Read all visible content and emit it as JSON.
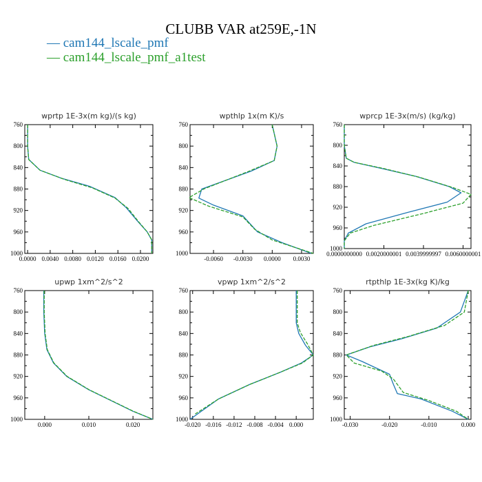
{
  "title": "CLUBB VAR at259E,-1N",
  "legend": [
    {
      "label": "cam144_lscale_pmf",
      "color": "#1f77b4",
      "dash": "solid"
    },
    {
      "label": "cam144_lscale_pmf_a1test",
      "color": "#2ca02c",
      "dash": "dashed"
    }
  ],
  "chart_data": [
    {
      "type": "line",
      "title": "wprtp  1E-3x(m kg)/(s kg)",
      "xlim": [
        -0.0005,
        0.0222
      ],
      "ylim": [
        760,
        1000
      ],
      "y_inverted": true,
      "xticks": [
        0.0,
        0.004,
        0.008,
        0.012,
        0.016,
        0.02
      ],
      "xtick_labels": [
        "0.0000",
        "0.0040",
        "0.0080",
        "0.0120",
        "0.0160",
        "0.0200"
      ],
      "yticks": [
        760,
        800,
        840,
        880,
        920,
        960,
        1000
      ],
      "series": [
        {
          "name": "cam144_lscale_pmf",
          "x": [
            0.0,
            0.0,
            0.0002,
            0.0022,
            0.006,
            0.011,
            0.0155,
            0.0175,
            0.0195,
            0.0212,
            0.022,
            0.022
          ],
          "y": [
            760,
            800,
            825,
            845,
            860,
            875,
            896,
            915,
            940,
            960,
            975,
            1000
          ]
        },
        {
          "name": "cam144_lscale_pmf_a1test",
          "x": [
            0.0,
            0.0,
            0.0002,
            0.0022,
            0.0065,
            0.0115,
            0.0155,
            0.0178,
            0.0196,
            0.0212,
            0.022,
            0.022
          ],
          "y": [
            760,
            800,
            825,
            845,
            862,
            878,
            897,
            916,
            940,
            960,
            975,
            1000
          ]
        }
      ]
    },
    {
      "type": "line",
      "title": "wpthlp  1x(m K)/s",
      "xlim": [
        -0.0084,
        0.0042
      ],
      "ylim": [
        760,
        1000
      ],
      "y_inverted": true,
      "xticks": [
        -0.006,
        -0.003,
        0.0,
        0.003
      ],
      "xtick_labels": [
        "-0.0060",
        "-0.0030",
        "0.0000",
        "0.0030"
      ],
      "yticks": [
        760,
        800,
        840,
        880,
        920,
        960,
        1000
      ],
      "series": [
        {
          "name": "cam144_lscale_pmf",
          "x": [
            0.0,
            0.0005,
            0.0002,
            -0.0022,
            -0.0072,
            -0.0075,
            -0.006,
            -0.003,
            -0.0015,
            0.001,
            0.004
          ],
          "y": [
            760,
            800,
            827,
            847,
            880,
            897,
            910,
            930,
            960,
            980,
            1000
          ]
        },
        {
          "name": "cam144_lscale_pmf_a1test",
          "x": [
            0.0,
            0.0005,
            0.0002,
            -0.0024,
            -0.007,
            -0.0085,
            -0.0065,
            -0.003,
            -0.0018,
            0.0,
            0.0042
          ],
          "y": [
            760,
            800,
            827,
            847,
            880,
            896,
            912,
            932,
            955,
            975,
            1000
          ]
        }
      ]
    },
    {
      "type": "line",
      "title": "wprcp  1E-3x(m/s) (kg/kg)",
      "xlim": [
        0.0,
        0.0064
      ],
      "ylim": [
        760,
        1000
      ],
      "y_inverted": true,
      "xticks": [
        0.0,
        0.002,
        0.004,
        0.006
      ],
      "xtick_labels": [
        "0.0000000000",
        "0.0020000001",
        "0.0039999997",
        "0.0060000001"
      ],
      "yticks": [
        760,
        800,
        840,
        880,
        920,
        960,
        1000
      ],
      "series": [
        {
          "name": "cam144_lscale_pmf",
          "x": [
            0.0,
            0.0,
            0.0001,
            0.0005,
            0.0019,
            0.0036,
            0.0053,
            0.0059,
            0.0052,
            0.0032,
            0.0011,
            0.0002,
            0.0,
            0.0
          ],
          "y": [
            760,
            800,
            825,
            833,
            845,
            860,
            880,
            892,
            910,
            930,
            952,
            970,
            985,
            1000
          ]
        },
        {
          "name": "cam144_lscale_pmf_a1test",
          "x": [
            0.0,
            0.0,
            0.0001,
            0.0005,
            0.002,
            0.0038,
            0.0055,
            0.0064,
            0.006,
            0.004,
            0.0015,
            0.0003,
            0.0,
            0.0
          ],
          "y": [
            760,
            800,
            825,
            833,
            845,
            862,
            882,
            895,
            912,
            932,
            955,
            970,
            985,
            1000
          ]
        }
      ]
    },
    {
      "type": "line",
      "title": "upwp  1xm^2/s^2",
      "xlim": [
        -0.0045,
        0.0245
      ],
      "ylim": [
        760,
        1000
      ],
      "y_inverted": true,
      "xticks": [
        0.0,
        0.01,
        0.02
      ],
      "xtick_labels": [
        "0.000",
        "0.010",
        "0.020"
      ],
      "yticks": [
        760,
        800,
        840,
        880,
        920,
        960,
        1000
      ],
      "series": [
        {
          "name": "cam144_lscale_pmf",
          "x": [
            -0.0002,
            -0.0002,
            0.0,
            0.0005,
            0.002,
            0.005,
            0.01,
            0.015,
            0.02,
            0.0245
          ],
          "y": [
            760,
            800,
            840,
            870,
            895,
            920,
            945,
            965,
            985,
            1000
          ]
        },
        {
          "name": "cam144_lscale_pmf_a1test",
          "x": [
            -0.0001,
            -0.0001,
            0.0001,
            0.0006,
            0.0021,
            0.0051,
            0.0101,
            0.0151,
            0.0201,
            0.0245
          ],
          "y": [
            760,
            800,
            840,
            870,
            895,
            920,
            945,
            965,
            985,
            1000
          ]
        }
      ]
    },
    {
      "type": "line",
      "title": "vpwp  1xm^2/s^2",
      "xlim": [
        -0.0205,
        0.0033
      ],
      "ylim": [
        760,
        1000
      ],
      "y_inverted": true,
      "xticks": [
        -0.02,
        -0.016,
        -0.012,
        -0.008,
        -0.004,
        0.0
      ],
      "xtick_labels": [
        "-0.020",
        "-0.016",
        "-0.012",
        "-0.008",
        "-0.004",
        "0.000"
      ],
      "yticks": [
        760,
        800,
        840,
        880,
        920,
        960,
        1000
      ],
      "series": [
        {
          "name": "cam144_lscale_pmf",
          "x": [
            0.0,
            0.0,
            0.0005,
            0.0018,
            0.0033,
            0.001,
            -0.003,
            -0.009,
            -0.015,
            -0.0205
          ],
          "y": [
            760,
            820,
            840,
            862,
            880,
            895,
            912,
            935,
            962,
            1000
          ]
        },
        {
          "name": "cam144_lscale_pmf_a1test",
          "x": [
            0.0002,
            0.0002,
            0.0008,
            0.0022,
            0.0033,
            0.0012,
            -0.003,
            -0.009,
            -0.015,
            -0.0195
          ],
          "y": [
            760,
            820,
            838,
            860,
            880,
            895,
            912,
            935,
            962,
            990
          ]
        }
      ]
    },
    {
      "type": "line",
      "title": "rtpthlp  1E-3x(kg K)/kg",
      "xlim": [
        -0.0315,
        0.0007
      ],
      "ylim": [
        760,
        1000
      ],
      "y_inverted": true,
      "xticks": [
        -0.03,
        -0.02,
        -0.01,
        0.0
      ],
      "xtick_labels": [
        "-0.030",
        "-0.020",
        "-0.010",
        "0.000"
      ],
      "yticks": [
        760,
        800,
        840,
        880,
        920,
        960,
        1000
      ],
      "series": [
        {
          "name": "cam144_lscale_pmf",
          "x": [
            0.0,
            -0.002,
            -0.008,
            -0.017,
            -0.025,
            -0.031,
            -0.027,
            -0.02,
            -0.019,
            -0.018,
            -0.012,
            -0.004,
            0.0
          ],
          "y": [
            760,
            800,
            830,
            850,
            865,
            880,
            892,
            916,
            935,
            952,
            962,
            985,
            1000
          ]
        },
        {
          "name": "cam144_lscale_pmf_a1test",
          "x": [
            0.0,
            -0.001,
            -0.006,
            -0.015,
            -0.024,
            -0.031,
            -0.029,
            -0.022,
            -0.019,
            -0.0165,
            -0.01,
            -0.003,
            0.0
          ],
          "y": [
            760,
            800,
            825,
            845,
            862,
            880,
            895,
            910,
            925,
            950,
            965,
            985,
            1000
          ]
        }
      ]
    }
  ]
}
